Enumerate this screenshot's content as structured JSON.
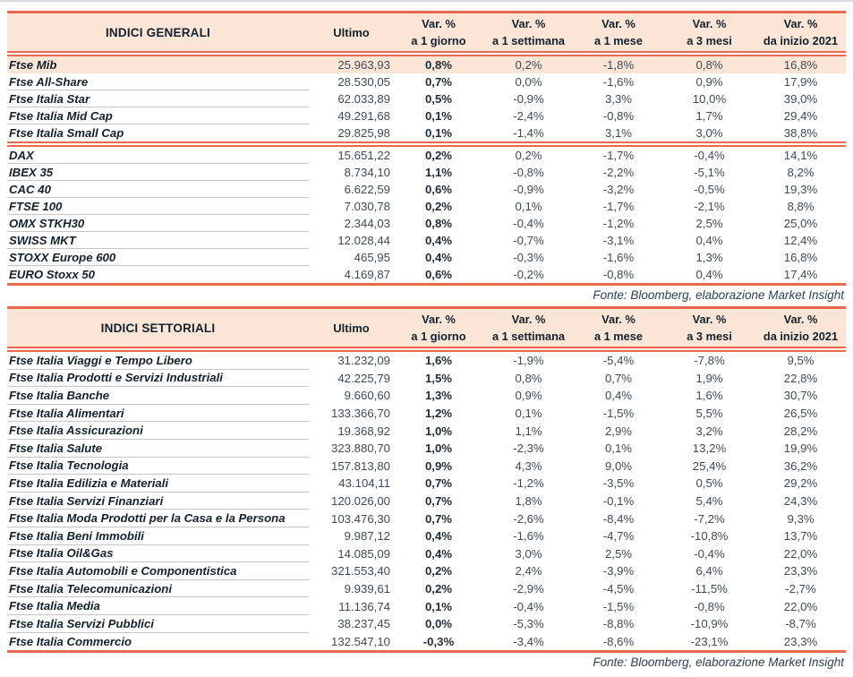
{
  "page": {
    "accent_color": "#e9694f",
    "header_bg": "#fbe5d6",
    "ink_color": "#14212e",
    "source_note": "Fonte: Bloomberg, elaborazione Market Insight"
  },
  "columns": {
    "ultimo": "Ultimo",
    "var_cols": [
      [
        "Var. %",
        "a 1 giorno"
      ],
      [
        "Var. %",
        "a 1 settimana"
      ],
      [
        "Var. %",
        "a 1 mese"
      ],
      [
        "Var. %",
        "a 3 mesi"
      ],
      [
        "Var. %",
        "da inizio 2021"
      ]
    ]
  },
  "tables": [
    {
      "title": "INDICI GENERALI",
      "source": "Fonte: Bloomberg, elaborazione Market Insight",
      "groups": [
        {
          "rows": [
            {
              "name": "Ftse Mib",
              "highlight": true,
              "values": [
                "25.963,93",
                "0,8%",
                "0,2%",
                "-1,8%",
                "0,8%",
                "16,8%"
              ]
            },
            {
              "name": "Ftse All-Share",
              "values": [
                "28.530,05",
                "0,7%",
                "0,0%",
                "-1,6%",
                "0,9%",
                "17,9%"
              ]
            },
            {
              "name": "Ftse Italia Star",
              "values": [
                "62.033,89",
                "0,5%",
                "-0,9%",
                "3,3%",
                "10,0%",
                "39,0%"
              ]
            },
            {
              "name": "Ftse Italia Mid Cap",
              "values": [
                "49.291,68",
                "0,1%",
                "-2,4%",
                "-0,8%",
                "1,7%",
                "29,4%"
              ]
            },
            {
              "name": "Ftse Italia Small Cap",
              "values": [
                "29.825,98",
                "0,1%",
                "-1,4%",
                "3,1%",
                "3,0%",
                "38,8%"
              ]
            }
          ]
        },
        {
          "rows": [
            {
              "name": "DAX",
              "values": [
                "15.651,22",
                "0,2%",
                "0,2%",
                "-1,7%",
                "-0,4%",
                "14,1%"
              ]
            },
            {
              "name": "IBEX 35",
              "values": [
                "8.734,10",
                "1,1%",
                "-0,8%",
                "-2,2%",
                "-5,1%",
                "8,2%"
              ]
            },
            {
              "name": "CAC 40",
              "values": [
                "6.622,59",
                "0,6%",
                "-0,9%",
                "-3,2%",
                "-0,5%",
                "19,3%"
              ]
            },
            {
              "name": "FTSE 100",
              "values": [
                "7.030,78",
                "0,2%",
                "0,1%",
                "-1,7%",
                "-2,1%",
                "8,8%"
              ]
            },
            {
              "name": "OMX STKH30",
              "values": [
                "2.344,03",
                "0,8%",
                "-0,4%",
                "-1,2%",
                "2,5%",
                "25,0%"
              ]
            },
            {
              "name": "SWISS MKT",
              "values": [
                "12.028,44",
                "0,4%",
                "-0,7%",
                "-3,1%",
                "0,4%",
                "12,4%"
              ]
            },
            {
              "name": "STOXX Europe 600",
              "values": [
                "465,95",
                "0,4%",
                "-0,3%",
                "-1,6%",
                "1,3%",
                "16,8%"
              ]
            },
            {
              "name": "EURO Stoxx 50",
              "values": [
                "4.169,87",
                "0,6%",
                "-0,2%",
                "-0,8%",
                "0,4%",
                "17,4%"
              ]
            }
          ]
        }
      ]
    },
    {
      "title": "INDICI SETTORIALI",
      "source": "Fonte: Bloomberg, elaborazione Market Insight",
      "groups": [
        {
          "rows": [
            {
              "name": "Ftse Italia Viaggi e Tempo Libero",
              "values": [
                "31.232,09",
                "1,6%",
                "-1,9%",
                "-5,4%",
                "-7,8%",
                "9,5%"
              ]
            },
            {
              "name": "Ftse Italia Prodotti e Servizi Industriali",
              "values": [
                "42.225,79",
                "1,5%",
                "0,8%",
                "0,7%",
                "1,9%",
                "22,8%"
              ]
            },
            {
              "name": "Ftse Italia Banche",
              "values": [
                "9.660,60",
                "1,3%",
                "0,9%",
                "0,4%",
                "1,6%",
                "30,7%"
              ]
            },
            {
              "name": "Ftse Italia Alimentari",
              "values": [
                "133.366,70",
                "1,2%",
                "0,1%",
                "-1,5%",
                "5,5%",
                "26,5%"
              ]
            },
            {
              "name": "Ftse Italia Assicurazioni",
              "values": [
                "19.368,92",
                "1,0%",
                "1,1%",
                "2,9%",
                "3,2%",
                "28,2%"
              ]
            },
            {
              "name": "Ftse Italia Salute",
              "values": [
                "323.880,70",
                "1,0%",
                "-2,3%",
                "0,1%",
                "13,2%",
                "19,9%"
              ]
            },
            {
              "name": "Ftse Italia Tecnologia",
              "values": [
                "157.813,80",
                "0,9%",
                "4,3%",
                "9,0%",
                "25,4%",
                "36,2%"
              ]
            },
            {
              "name": "Ftse Italia Edilizia e Materiali",
              "values": [
                "43.104,11",
                "0,7%",
                "-1,2%",
                "-3,5%",
                "0,5%",
                "29,2%"
              ]
            },
            {
              "name": "Ftse Italia Servizi Finanziari",
              "values": [
                "120.026,00",
                "0,7%",
                "1,8%",
                "-0,1%",
                "5,4%",
                "24,3%"
              ]
            },
            {
              "name": "Ftse Italia Moda Prodotti per la Casa e la Persona",
              "values": [
                "103.476,30",
                "0,7%",
                "-2,6%",
                "-8,4%",
                "-7,2%",
                "9,3%"
              ]
            },
            {
              "name": "Ftse Italia Beni Immobili",
              "values": [
                "9.987,12",
                "0,4%",
                "-1,6%",
                "-4,7%",
                "-10,8%",
                "13,7%"
              ]
            },
            {
              "name": "Ftse Italia Oil&Gas",
              "values": [
                "14.085,09",
                "0,4%",
                "3,0%",
                "2,5%",
                "-0,4%",
                "22,0%"
              ]
            },
            {
              "name": "Ftse Italia Automobili e Componentistica",
              "values": [
                "321.553,40",
                "0,2%",
                "2,4%",
                "-3,9%",
                "6,4%",
                "23,3%"
              ]
            },
            {
              "name": "Ftse Italia Telecomunicazioni",
              "values": [
                "9.939,61",
                "0,2%",
                "-2,9%",
                "-4,5%",
                "-11,5%",
                "-2,7%"
              ]
            },
            {
              "name": "Ftse Italia Media",
              "values": [
                "11.136,74",
                "0,1%",
                "-0,4%",
                "-1,5%",
                "-0,8%",
                "22,0%"
              ]
            },
            {
              "name": "Ftse Italia Servizi Pubblici",
              "values": [
                "38.237,45",
                "0,0%",
                "-5,3%",
                "-8,8%",
                "-10,9%",
                "-8,7%"
              ]
            },
            {
              "name": "Ftse Italia Commercio",
              "values": [
                "132.547,10",
                "-0,3%",
                "-3,4%",
                "-8,6%",
                "-23,1%",
                "23,3%"
              ]
            }
          ]
        }
      ]
    }
  ]
}
